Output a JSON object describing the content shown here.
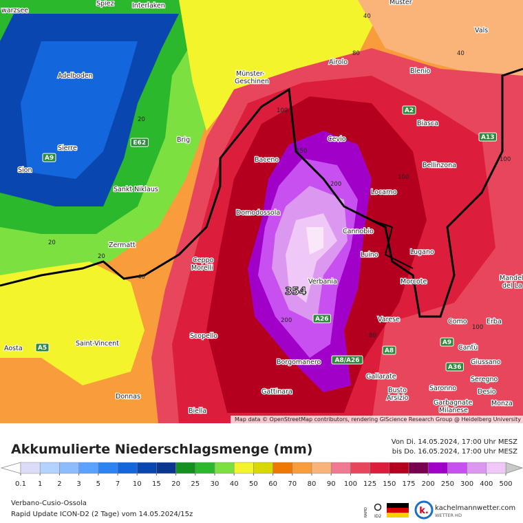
{
  "map": {
    "places": [
      "Spiez",
      "Interlaken",
      "Muster",
      "warzsee",
      "Adelboden",
      "Münster-",
      "Geschinen",
      "Airolo",
      "Blenio",
      "Vals",
      "Sierre",
      "Sion",
      "Brig",
      "Sankt Niklaus",
      "Zermatt",
      "Biasca",
      "Cevio",
      "Baceno",
      "Bellinzona",
      "Locarno",
      "Domodossola",
      "Cannobio",
      "Luino",
      "Lugano",
      "Ceppo",
      "Morelli",
      "Verbania",
      "Morcote",
      "Mandello",
      "del La",
      "Varese",
      "Como",
      "Erba",
      "Cantù",
      "Aosta",
      "Saint-Vincent",
      "Scopello",
      "Borgomanero",
      "Giussano",
      "Gallarate",
      "Seregno",
      "Donnas",
      "Gattinara",
      "Busto",
      "Arsizio",
      "Saronno",
      "Desio",
      "Garbagnate",
      "Milanese",
      "Monza",
      "Biella"
    ],
    "roads": [
      "A9",
      "E62",
      "A2",
      "A13",
      "A26",
      "A9",
      "A5",
      "A8/A26",
      "A8",
      "A36"
    ],
    "contours": [
      "40",
      "80",
      "40",
      "20",
      "20",
      "20",
      "40",
      "100",
      "150",
      "200",
      "100",
      "200",
      "100",
      "80",
      "100"
    ],
    "max_label": "354",
    "attribution": "Map data © OpenStreetMap contributors, rendering GIScience Research Group @ Heidelberg University"
  },
  "legend": {
    "title": "Akkumulierte Niederschlagsmenge (mm)",
    "from": "Von Di. 14.05.2024, 17:00 Uhr MESZ",
    "to": "bis Do. 16.05.2024, 17:00 Uhr MESZ",
    "ticks": [
      0.1,
      1,
      2,
      3,
      5,
      7,
      10,
      15,
      20,
      25,
      30,
      40,
      50,
      60,
      70,
      80,
      90,
      100,
      125,
      150,
      175,
      200,
      250,
      300,
      400,
      500
    ],
    "colors": [
      "#dcdcf8",
      "#b4d2ff",
      "#8cbcff",
      "#5aa2ff",
      "#2c84f4",
      "#1466dc",
      "#0a46b0",
      "#0a3690",
      "#14901e",
      "#2cb82c",
      "#7ce040",
      "#f4f42c",
      "#d8d800",
      "#f07800",
      "#f89c3c",
      "#fab47a",
      "#f07890",
      "#e8465c",
      "#dc1e3c",
      "#b4001e",
      "#7a0050",
      "#a000c8",
      "#c850f0",
      "#dc98f0",
      "#f0c8f8",
      "#fae8fa"
    ],
    "below_color": "#ffffff",
    "above_color": "#c8c8c8"
  },
  "footer": {
    "region": "Verbano-Cusio-Ossola",
    "model": "Rapid Update ICON-D2 (2 Tage) vom 14.05.2024/15z",
    "badge_top": "RAPID",
    "badge_bottom": "ID2",
    "site": "kachelmannwetter.com",
    "site_sub": "WETTER HD"
  }
}
